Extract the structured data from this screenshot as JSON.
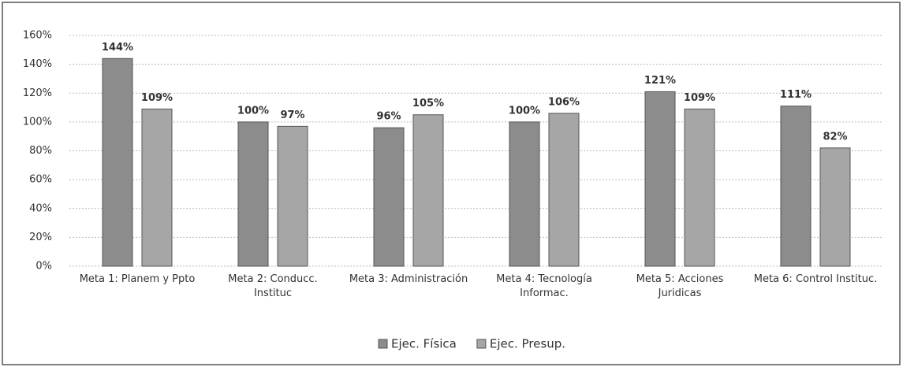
{
  "chart_data": {
    "type": "bar",
    "categories": [
      "Meta 1: Planem y Ppto",
      "Meta 2: Conducc. Instituc",
      "Meta 3: Administración",
      "Meta 4: Tecnología Informac.",
      "Meta 5: Acciones Juridicas",
      "Meta 6: Control Instituc."
    ],
    "series": [
      {
        "name": "Ejec. Física",
        "color": "#8c8c8c",
        "values": [
          144,
          100,
          96,
          100,
          121,
          111
        ],
        "value_labels": [
          "144%",
          "100%",
          "96%",
          "100%",
          "121%",
          "111%"
        ]
      },
      {
        "name": "Ejec. Presup.",
        "color": "#a6a6a6",
        "values": [
          109,
          97,
          105,
          106,
          109,
          82
        ],
        "value_labels": [
          "109%",
          "97%",
          "105%",
          "106%",
          "109%",
          "82%"
        ]
      }
    ],
    "ylim": [
      0,
      160
    ],
    "yticks": [
      {
        "value": 0,
        "label": "0%"
      },
      {
        "value": 20,
        "label": "20%"
      },
      {
        "value": 40,
        "label": "40%"
      },
      {
        "value": 60,
        "label": "60%"
      },
      {
        "value": 80,
        "label": "80%"
      },
      {
        "value": 100,
        "label": "100%"
      },
      {
        "value": 120,
        "label": "120%"
      },
      {
        "value": 140,
        "label": "140%"
      },
      {
        "value": 160,
        "label": "160%"
      }
    ],
    "grid": true,
    "legend": "bottom"
  }
}
